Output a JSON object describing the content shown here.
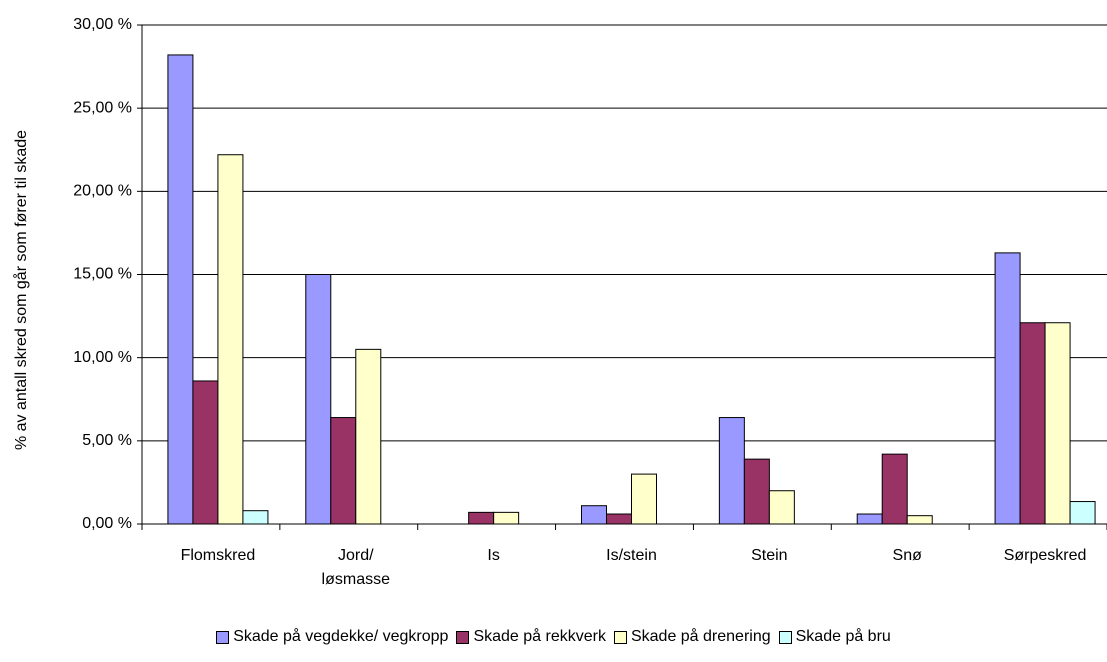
{
  "chart_data": {
    "type": "bar",
    "y_label": "% av antall skred som går som fører til skade",
    "categories": [
      "Flomskred",
      "Jord/ løsmasse",
      "Is",
      "Is/stein",
      "Stein",
      "Snø",
      "Sørpeskred"
    ],
    "series": [
      {
        "name": "Skade på vegdekke/ vegkropp",
        "color": "#9999ff",
        "values": [
          28.2,
          15.0,
          0,
          1.1,
          6.4,
          0.6,
          16.3
        ]
      },
      {
        "name": "Skade på rekkverk",
        "color": "#993366",
        "values": [
          8.6,
          6.4,
          0.7,
          0.6,
          3.9,
          4.2,
          12.1
        ]
      },
      {
        "name": "Skade på drenering",
        "color": "#ffffcc",
        "values": [
          22.2,
          10.5,
          0.7,
          3.0,
          2.0,
          0.5,
          12.1
        ]
      },
      {
        "name": "Skade på bru",
        "color": "#ccffff",
        "values": [
          0.8,
          0,
          0,
          0,
          0,
          0,
          1.35
        ]
      }
    ],
    "ylim": [
      0,
      30
    ],
    "yticks": [
      {
        "value": 0,
        "label": "0,00 %"
      },
      {
        "value": 5,
        "label": "5,00 %"
      },
      {
        "value": 10,
        "label": "10,00 %"
      },
      {
        "value": 15,
        "label": "15,00 %"
      },
      {
        "value": 20,
        "label": "20,00 %"
      },
      {
        "value": 25,
        "label": "25,00 %"
      },
      {
        "value": 30,
        "label": "30,00 %"
      }
    ],
    "grid": true,
    "legend": "bottom"
  }
}
